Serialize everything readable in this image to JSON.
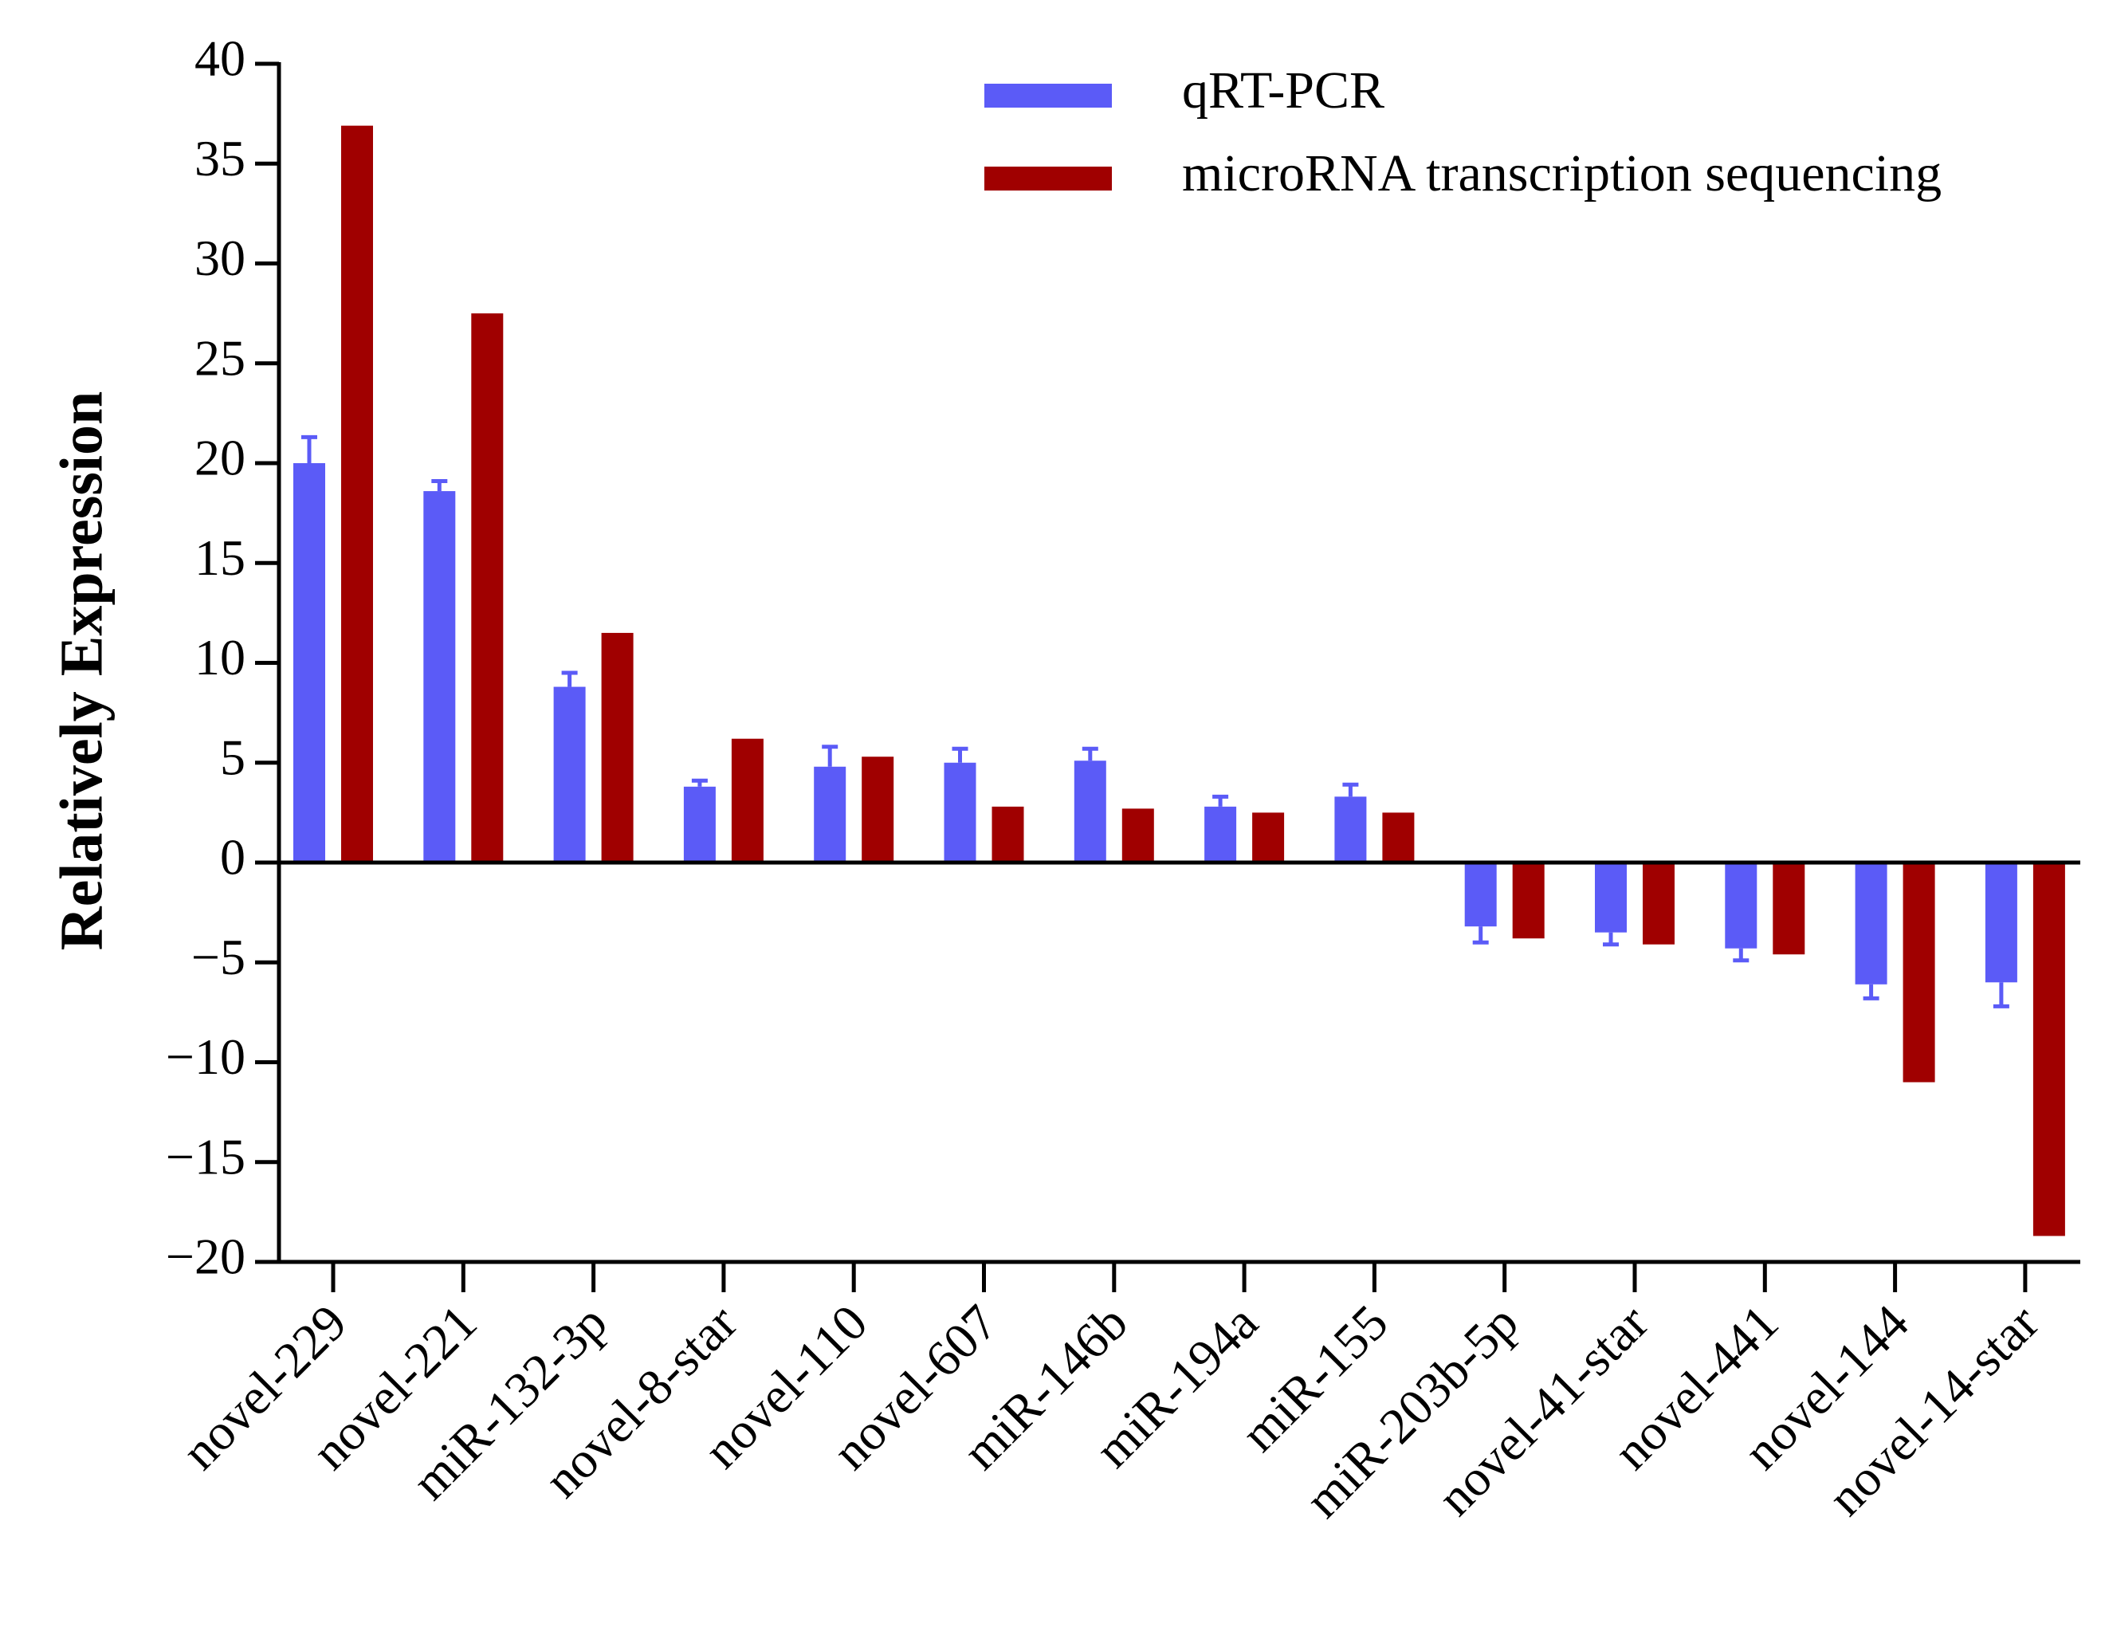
{
  "chart_data": {
    "type": "bar",
    "title": "",
    "xlabel": "",
    "ylabel": "Relatively Expression",
    "ylim": [
      -20,
      40
    ],
    "yticks": [
      40,
      35,
      30,
      25,
      20,
      15,
      10,
      5,
      0,
      -5,
      -10,
      -15,
      -20
    ],
    "ytick_labels": [
      "40",
      "35",
      "30",
      "25",
      "20",
      "15",
      "10",
      "5",
      "0",
      "−5",
      "−10",
      "−15",
      "−20"
    ],
    "grid": false,
    "legend_position": "top-right",
    "categories": [
      "novel-229",
      "novel-221",
      "miR-132-3p",
      "novel-8-star",
      "novel-110",
      "novel-607",
      "miR-146b",
      "miR-194a",
      "miR-155",
      "miR-203b-5p",
      "novel-41-star",
      "novel-441",
      "novel-144",
      "novel-14-star"
    ],
    "series": [
      {
        "name": "qRT-PCR",
        "color": "#5b5bf7",
        "values": [
          20.0,
          18.6,
          8.8,
          3.8,
          4.8,
          5.0,
          5.1,
          2.8,
          3.3,
          -3.2,
          -3.5,
          -4.3,
          -6.1,
          -6.0
        ],
        "errors": [
          1.3,
          0.5,
          0.7,
          0.3,
          1.0,
          0.7,
          0.6,
          0.5,
          0.6,
          0.8,
          0.6,
          0.6,
          0.7,
          1.2
        ]
      },
      {
        "name": "microRNA transcription sequencing",
        "color": "#a00000",
        "values": [
          36.9,
          27.5,
          11.5,
          6.2,
          5.3,
          2.8,
          2.7,
          2.5,
          2.5,
          -3.8,
          -4.1,
          -4.6,
          -11.0,
          -18.7
        ]
      }
    ]
  }
}
